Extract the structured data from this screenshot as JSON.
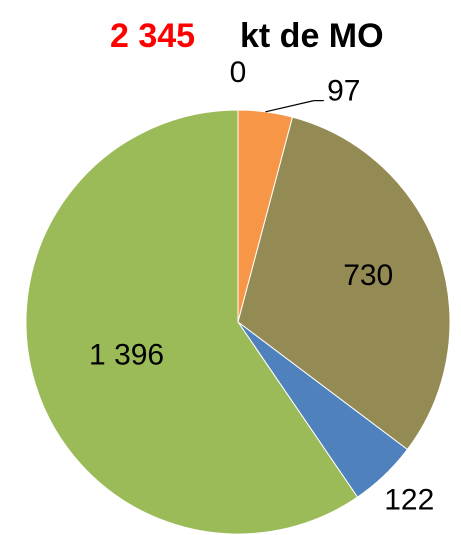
{
  "chart_data": {
    "type": "pie",
    "title": "2 345",
    "subtitle": "kt de MO",
    "values": [
      0,
      97,
      730,
      122,
      1396
    ],
    "value_labels": [
      "0",
      "97",
      "730",
      "122",
      "1 396"
    ],
    "colors": [
      null,
      "#f79646",
      "#948a54",
      "#4f81bd",
      "#9bbb59"
    ]
  }
}
